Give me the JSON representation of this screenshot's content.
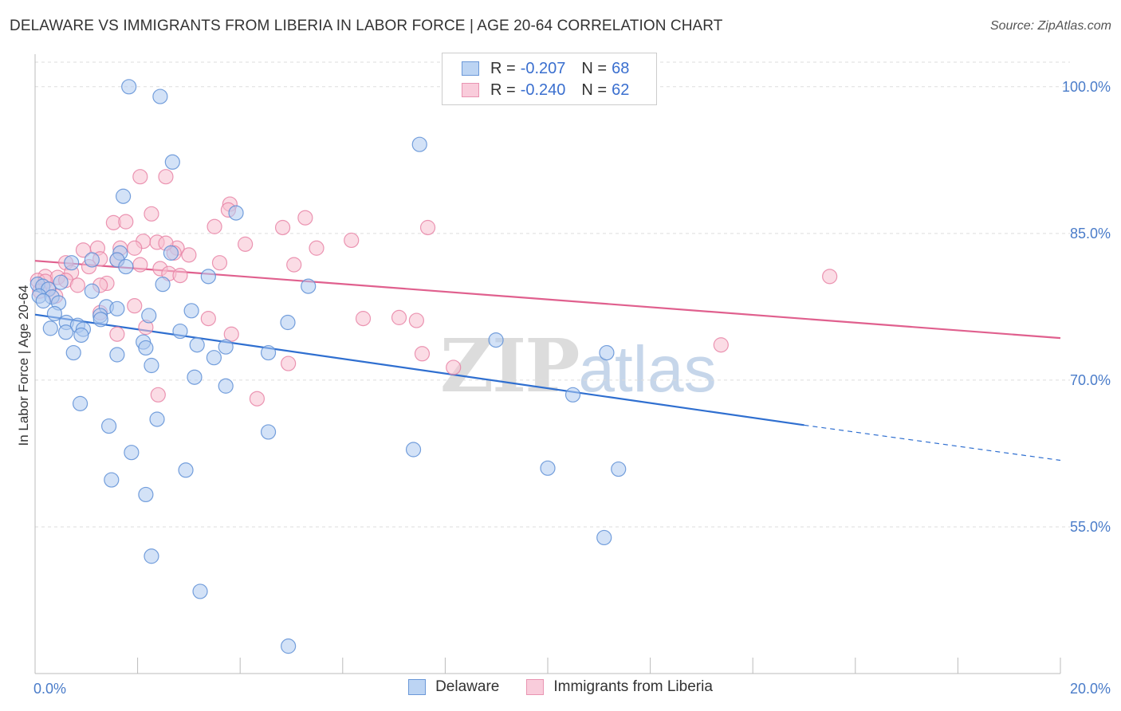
{
  "title": "DELAWARE VS IMMIGRANTS FROM LIBERIA IN LABOR FORCE | AGE 20-64 CORRELATION CHART",
  "source": "Source: ZipAtlas.com",
  "watermark": {
    "zip": "ZIP",
    "atlas": "atlas"
  },
  "legend": {
    "delaware": {
      "r_label": "R =",
      "r_value": "-0.207",
      "n_label": "N =",
      "n_value": "68"
    },
    "liberia": {
      "r_label": "R =",
      "r_value": "-0.240",
      "n_label": "N =",
      "n_value": "62"
    }
  },
  "colors": {
    "delaware_fill": "#aecbf0",
    "delaware_stroke": "#5e8fd6",
    "delaware_line": "#2f6fd0",
    "liberia_fill": "#f7bfd0",
    "liberia_stroke": "#e884a6",
    "liberia_line": "#e0608e",
    "grid": "#dddddd",
    "tick_text": "#4a7cc9"
  },
  "chart_data": {
    "type": "scatter",
    "title": "DELAWARE VS IMMIGRANTS FROM LIBERIA IN LABOR FORCE | AGE 20-64 CORRELATION CHART",
    "xlabel": "",
    "ylabel": "In Labor Force | Age 20-64",
    "xlim": [
      0,
      20
    ],
    "ylim": [
      40,
      103
    ],
    "x_tick_labels": [
      "0.0%",
      "20.0%"
    ],
    "y_ticks": [
      55,
      70,
      85,
      100
    ],
    "y_tick_labels": [
      "55.0%",
      "70.0%",
      "85.0%",
      "100.0%"
    ],
    "grid": true,
    "series": [
      {
        "name": "Delaware",
        "r": -0.207,
        "n": 68,
        "trend": {
          "x0": 0,
          "y0": 76.7,
          "x1": 15,
          "y1": 65.4,
          "dash_to_x": 20,
          "dash_to_y": 61.8
        },
        "points": [
          [
            1.83,
            100.0
          ],
          [
            2.44,
            99.0
          ],
          [
            7.5,
            94.1
          ],
          [
            2.68,
            92.3
          ],
          [
            1.72,
            88.8
          ],
          [
            3.92,
            87.1
          ],
          [
            1.66,
            83.0
          ],
          [
            2.65,
            83.0
          ],
          [
            1.11,
            82.3
          ],
          [
            1.6,
            82.3
          ],
          [
            0.71,
            82.0
          ],
          [
            1.77,
            81.6
          ],
          [
            3.38,
            80.6
          ],
          [
            0.5,
            80.0
          ],
          [
            0.05,
            79.8
          ],
          [
            0.15,
            79.6
          ],
          [
            2.49,
            79.8
          ],
          [
            5.33,
            79.6
          ],
          [
            0.26,
            79.3
          ],
          [
            1.11,
            79.1
          ],
          [
            0.08,
            78.6
          ],
          [
            0.33,
            78.5
          ],
          [
            0.16,
            78.1
          ],
          [
            0.46,
            77.9
          ],
          [
            1.39,
            77.5
          ],
          [
            1.6,
            77.3
          ],
          [
            3.05,
            77.1
          ],
          [
            0.38,
            76.8
          ],
          [
            1.27,
            76.6
          ],
          [
            2.22,
            76.6
          ],
          [
            1.28,
            76.2
          ],
          [
            0.61,
            75.9
          ],
          [
            4.93,
            75.9
          ],
          [
            0.83,
            75.6
          ],
          [
            0.3,
            75.3
          ],
          [
            0.94,
            75.2
          ],
          [
            2.83,
            75.0
          ],
          [
            0.6,
            74.9
          ],
          [
            0.9,
            74.6
          ],
          [
            8.99,
            74.1
          ],
          [
            2.11,
            73.9
          ],
          [
            3.16,
            73.6
          ],
          [
            3.72,
            73.4
          ],
          [
            2.16,
            73.3
          ],
          [
            0.75,
            72.8
          ],
          [
            1.6,
            72.6
          ],
          [
            4.55,
            72.8
          ],
          [
            11.15,
            72.8
          ],
          [
            3.49,
            72.3
          ],
          [
            2.27,
            71.5
          ],
          [
            3.11,
            70.3
          ],
          [
            3.72,
            69.4
          ],
          [
            10.49,
            68.5
          ],
          [
            0.88,
            67.6
          ],
          [
            2.38,
            66.0
          ],
          [
            1.44,
            65.3
          ],
          [
            4.55,
            64.7
          ],
          [
            7.38,
            62.9
          ],
          [
            1.88,
            62.6
          ],
          [
            10.0,
            61.0
          ],
          [
            2.94,
            60.8
          ],
          [
            11.38,
            60.9
          ],
          [
            1.49,
            59.8
          ],
          [
            2.16,
            58.3
          ],
          [
            11.1,
            53.9
          ],
          [
            2.27,
            52.0
          ],
          [
            3.22,
            48.4
          ],
          [
            4.94,
            42.8
          ]
        ]
      },
      {
        "name": "Immigrants from Liberia",
        "r": -0.24,
        "n": 62,
        "trend": {
          "x0": 0,
          "y0": 82.2,
          "x1": 20,
          "y1": 74.3
        },
        "points": [
          [
            2.05,
            90.8
          ],
          [
            2.55,
            90.8
          ],
          [
            3.8,
            88.0
          ],
          [
            3.77,
            87.4
          ],
          [
            2.27,
            87.0
          ],
          [
            5.27,
            86.6
          ],
          [
            1.53,
            86.1
          ],
          [
            1.77,
            86.2
          ],
          [
            3.5,
            85.7
          ],
          [
            4.83,
            85.6
          ],
          [
            7.66,
            85.6
          ],
          [
            2.11,
            84.2
          ],
          [
            2.38,
            84.1
          ],
          [
            6.17,
            84.3
          ],
          [
            4.1,
            83.9
          ],
          [
            1.66,
            83.5
          ],
          [
            1.94,
            83.5
          ],
          [
            2.77,
            83.5
          ],
          [
            0.94,
            83.3
          ],
          [
            1.22,
            83.5
          ],
          [
            5.49,
            83.5
          ],
          [
            3.0,
            82.8
          ],
          [
            2.71,
            83.0
          ],
          [
            1.6,
            82.3
          ],
          [
            1.27,
            82.4
          ],
          [
            0.6,
            82.0
          ],
          [
            1.05,
            81.6
          ],
          [
            2.05,
            81.8
          ],
          [
            3.6,
            82.0
          ],
          [
            5.05,
            81.8
          ],
          [
            2.44,
            81.4
          ],
          [
            2.61,
            80.9
          ],
          [
            0.71,
            81.0
          ],
          [
            0.2,
            80.6
          ],
          [
            0.44,
            80.5
          ],
          [
            2.83,
            80.7
          ],
          [
            15.5,
            80.6
          ],
          [
            0.05,
            80.2
          ],
          [
            0.2,
            80.1
          ],
          [
            0.6,
            80.2
          ],
          [
            1.4,
            79.9
          ],
          [
            0.83,
            79.7
          ],
          [
            1.27,
            79.7
          ],
          [
            0.27,
            79.3
          ],
          [
            0.09,
            79.1
          ],
          [
            0.4,
            78.6
          ],
          [
            1.94,
            77.6
          ],
          [
            1.27,
            76.9
          ],
          [
            3.38,
            76.3
          ],
          [
            6.4,
            76.3
          ],
          [
            7.1,
            76.4
          ],
          [
            7.44,
            76.1
          ],
          [
            2.16,
            75.4
          ],
          [
            3.83,
            74.7
          ],
          [
            1.6,
            74.7
          ],
          [
            13.38,
            73.6
          ],
          [
            7.55,
            72.7
          ],
          [
            4.94,
            71.7
          ],
          [
            8.16,
            71.3
          ],
          [
            2.4,
            68.5
          ],
          [
            4.33,
            68.1
          ],
          [
            2.55,
            84.0
          ]
        ]
      }
    ]
  }
}
